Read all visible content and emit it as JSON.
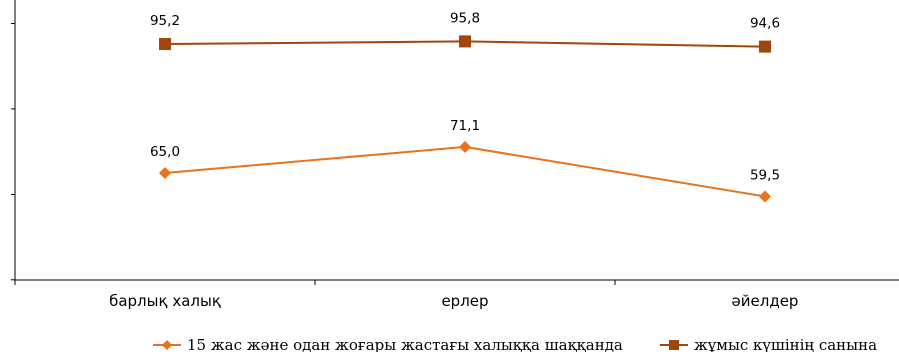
{
  "chart_data": {
    "type": "line",
    "categories": [
      "барлық халық",
      "ерлер",
      "әйелдер"
    ],
    "ylim": [
      0,
      100
    ],
    "grid": false,
    "legend_position": "bottom",
    "series": [
      {
        "name": "15 жас және одан жоғары жастағы халыққа шаққанда",
        "values": [
          65.0,
          71.1,
          59.5
        ],
        "labels": [
          "65,0",
          "71,1",
          "59,5"
        ],
        "color": "#E8731C",
        "marker": "diamond"
      },
      {
        "name": "жұмыс күшінің санына",
        "values": [
          95.2,
          95.8,
          94.6
        ],
        "labels": [
          "95,2",
          "95,8",
          "94,6"
        ],
        "color": "#A0460A",
        "marker": "square"
      }
    ]
  }
}
